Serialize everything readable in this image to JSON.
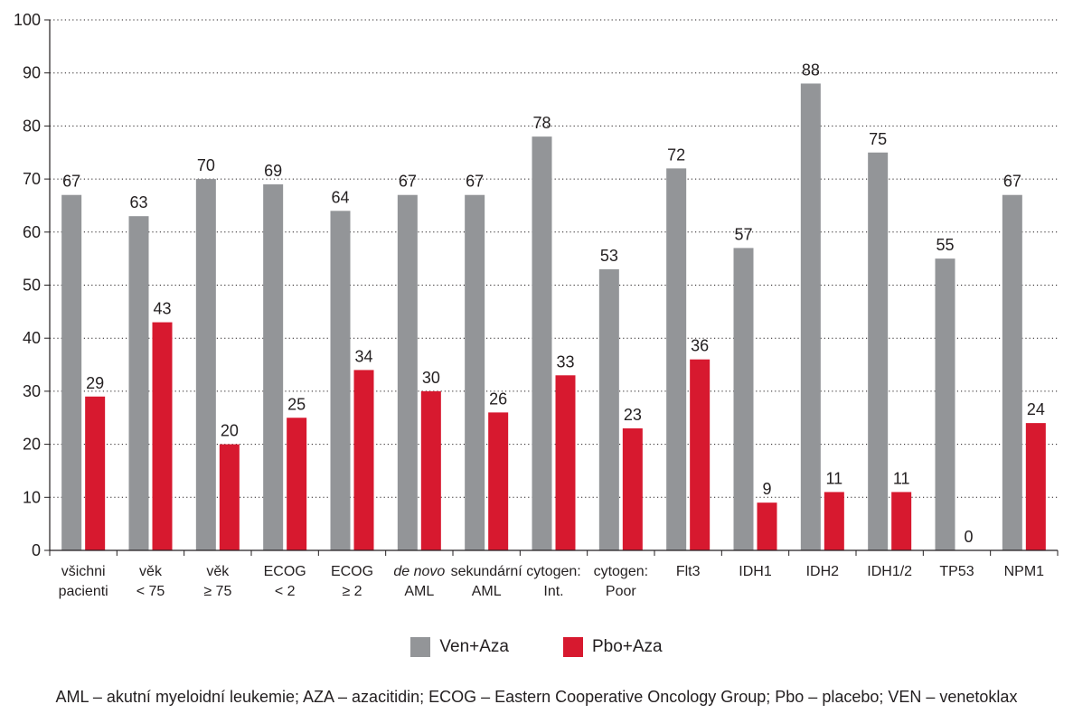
{
  "chart_data": {
    "type": "bar",
    "ylim": [
      0,
      100
    ],
    "yticks": [
      0,
      10,
      20,
      30,
      40,
      50,
      60,
      70,
      80,
      90,
      100
    ],
    "grid": "horizontal dotted",
    "categories": [
      {
        "lines": [
          "všichni",
          "pacienti"
        ],
        "italic_first_line": false
      },
      {
        "lines": [
          "věk",
          "< 75"
        ],
        "italic_first_line": false
      },
      {
        "lines": [
          "věk",
          "≥ 75"
        ],
        "italic_first_line": false
      },
      {
        "lines": [
          "ECOG",
          "< 2"
        ],
        "italic_first_line": false
      },
      {
        "lines": [
          "ECOG",
          "≥ 2"
        ],
        "italic_first_line": false
      },
      {
        "lines": [
          "de novo",
          "AML"
        ],
        "italic_first_line": true
      },
      {
        "lines": [
          "sekundární",
          "AML"
        ],
        "italic_first_line": false
      },
      {
        "lines": [
          "cytogen:",
          "Int."
        ],
        "italic_first_line": false
      },
      {
        "lines": [
          "cytogen:",
          "Poor"
        ],
        "italic_first_line": false
      },
      {
        "lines": [
          "Flt3"
        ],
        "italic_first_line": false
      },
      {
        "lines": [
          "IDH1"
        ],
        "italic_first_line": false
      },
      {
        "lines": [
          "IDH2"
        ],
        "italic_first_line": false
      },
      {
        "lines": [
          "IDH1/2"
        ],
        "italic_first_line": false
      },
      {
        "lines": [
          "TP53"
        ],
        "italic_first_line": false
      },
      {
        "lines": [
          "NPM1"
        ],
        "italic_first_line": false
      }
    ],
    "series": [
      {
        "name": "Ven+Aza",
        "color": "#939598",
        "values": [
          67,
          63,
          70,
          69,
          64,
          67,
          67,
          78,
          53,
          72,
          57,
          88,
          75,
          55,
          67
        ]
      },
      {
        "name": "Pbo+Aza",
        "color": "#d7192f",
        "values": [
          29,
          43,
          20,
          25,
          34,
          30,
          26,
          33,
          23,
          36,
          9,
          11,
          11,
          0,
          24
        ]
      }
    ],
    "legend_position": "bottom-center",
    "data_labels": true
  },
  "footnote": "AML – akutní myeloidní leukemie; AZA – azacitidin; ECOG – Eastern Cooperative Oncology Group; Pbo – placebo; VEN – venetoklax"
}
